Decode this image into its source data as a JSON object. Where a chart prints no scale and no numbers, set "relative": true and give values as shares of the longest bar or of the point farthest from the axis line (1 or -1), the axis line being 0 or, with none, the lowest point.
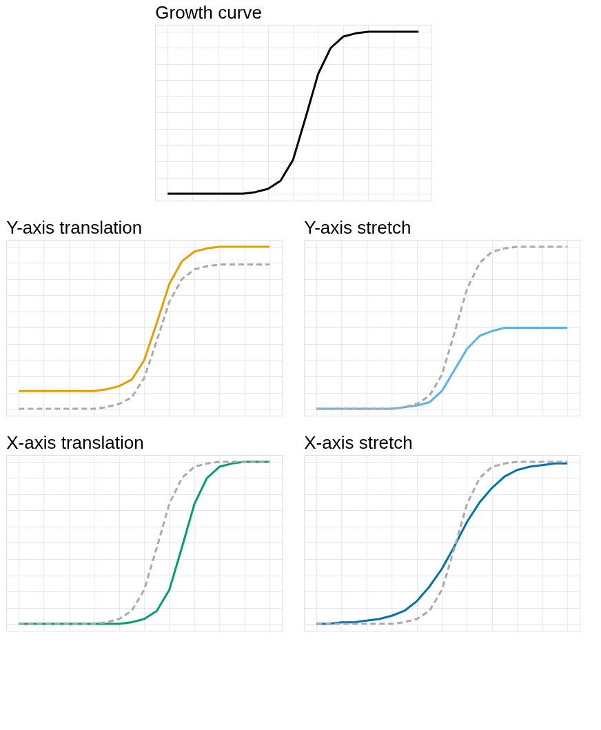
{
  "chart_data": [
    {
      "type": "line",
      "title": "Growth curve",
      "categories": [
        null,
        null,
        null,
        null,
        null,
        null,
        null,
        null,
        null,
        null,
        null,
        null,
        null,
        null,
        null,
        null,
        null,
        null,
        null,
        null,
        null
      ],
      "relative": true,
      "grid": true,
      "tick_labels": false,
      "legend": false,
      "series": [
        {
          "color": "#000000",
          "line_style": "solid",
          "values": [
            0,
            0,
            0,
            0,
            0,
            0,
            0,
            0.01,
            0.03,
            0.08,
            0.21,
            0.47,
            0.74,
            0.9,
            0.97,
            0.99,
            1,
            1,
            1,
            1,
            1
          ]
        }
      ]
    },
    {
      "type": "line",
      "title": "Y-axis translation",
      "categories": [
        null,
        null,
        null,
        null,
        null,
        null,
        null,
        null,
        null,
        null,
        null,
        null,
        null,
        null,
        null,
        null,
        null,
        null,
        null,
        null,
        null
      ],
      "relative": true,
      "grid": true,
      "tick_labels": false,
      "legend": false,
      "series": [
        {
          "color": "#aaaaaa",
          "line_style": "dashed",
          "values": [
            0,
            0,
            0,
            0,
            0,
            0,
            0,
            0.01,
            0.03,
            0.07,
            0.19,
            0.42,
            0.66,
            0.8,
            0.86,
            0.88,
            0.89,
            0.89,
            0.89,
            0.89,
            0.89
          ]
        },
        {
          "color": "#e69f00",
          "line_style": "solid",
          "values": [
            0.11,
            0.11,
            0.11,
            0.11,
            0.11,
            0.11,
            0.11,
            0.12,
            0.14,
            0.18,
            0.3,
            0.53,
            0.77,
            0.91,
            0.97,
            0.99,
            1,
            1,
            1,
            1,
            1
          ]
        }
      ]
    },
    {
      "type": "line",
      "title": "Y-axis stretch",
      "categories": [
        null,
        null,
        null,
        null,
        null,
        null,
        null,
        null,
        null,
        null,
        null,
        null,
        null,
        null,
        null,
        null,
        null,
        null,
        null,
        null,
        null
      ],
      "relative": true,
      "grid": true,
      "tick_labels": false,
      "legend": false,
      "series": [
        {
          "color": "#aaaaaa",
          "line_style": "dashed",
          "values": [
            0,
            0,
            0,
            0,
            0,
            0,
            0,
            0.01,
            0.03,
            0.08,
            0.21,
            0.47,
            0.74,
            0.9,
            0.97,
            0.99,
            1,
            1,
            1,
            1,
            1
          ]
        },
        {
          "color": "#56b4e9",
          "line_style": "solid",
          "values": [
            0,
            0,
            0,
            0,
            0,
            0,
            0,
            0.01,
            0.02,
            0.04,
            0.11,
            0.24,
            0.37,
            0.45,
            0.48,
            0.5,
            0.5,
            0.5,
            0.5,
            0.5,
            0.5
          ]
        }
      ]
    },
    {
      "type": "line",
      "title": "X-axis translation",
      "categories": [
        null,
        null,
        null,
        null,
        null,
        null,
        null,
        null,
        null,
        null,
        null,
        null,
        null,
        null,
        null,
        null,
        null,
        null,
        null,
        null,
        null
      ],
      "relative": true,
      "grid": true,
      "tick_labels": false,
      "legend": false,
      "series": [
        {
          "color": "#aaaaaa",
          "line_style": "dashed",
          "values": [
            0,
            0,
            0,
            0,
            0,
            0,
            0,
            0.01,
            0.03,
            0.08,
            0.21,
            0.47,
            0.74,
            0.9,
            0.97,
            0.99,
            1,
            1,
            1,
            1,
            1
          ]
        },
        {
          "color": "#009e73",
          "line_style": "solid",
          "values": [
            0,
            0,
            0,
            0,
            0,
            0,
            0,
            0,
            0,
            0.01,
            0.03,
            0.08,
            0.21,
            0.47,
            0.74,
            0.9,
            0.97,
            0.99,
            1,
            1,
            1
          ]
        }
      ]
    },
    {
      "type": "line",
      "title": "X-axis stretch",
      "categories": [
        null,
        null,
        null,
        null,
        null,
        null,
        null,
        null,
        null,
        null,
        null,
        null,
        null,
        null,
        null,
        null,
        null,
        null,
        null,
        null,
        null
      ],
      "relative": true,
      "grid": true,
      "tick_labels": false,
      "legend": false,
      "series": [
        {
          "color": "#aaaaaa",
          "line_style": "dashed",
          "values": [
            0,
            0,
            0,
            0,
            0,
            0,
            0,
            0.01,
            0.03,
            0.08,
            0.21,
            0.47,
            0.74,
            0.9,
            0.97,
            0.99,
            1,
            1,
            1,
            1,
            1
          ]
        },
        {
          "color": "#0072b2",
          "line_style": "solid",
          "values": [
            0,
            0,
            0.01,
            0.01,
            0.02,
            0.03,
            0.05,
            0.08,
            0.14,
            0.23,
            0.34,
            0.48,
            0.63,
            0.75,
            0.84,
            0.91,
            0.95,
            0.97,
            0.98,
            0.99,
            0.99
          ]
        }
      ]
    }
  ]
}
